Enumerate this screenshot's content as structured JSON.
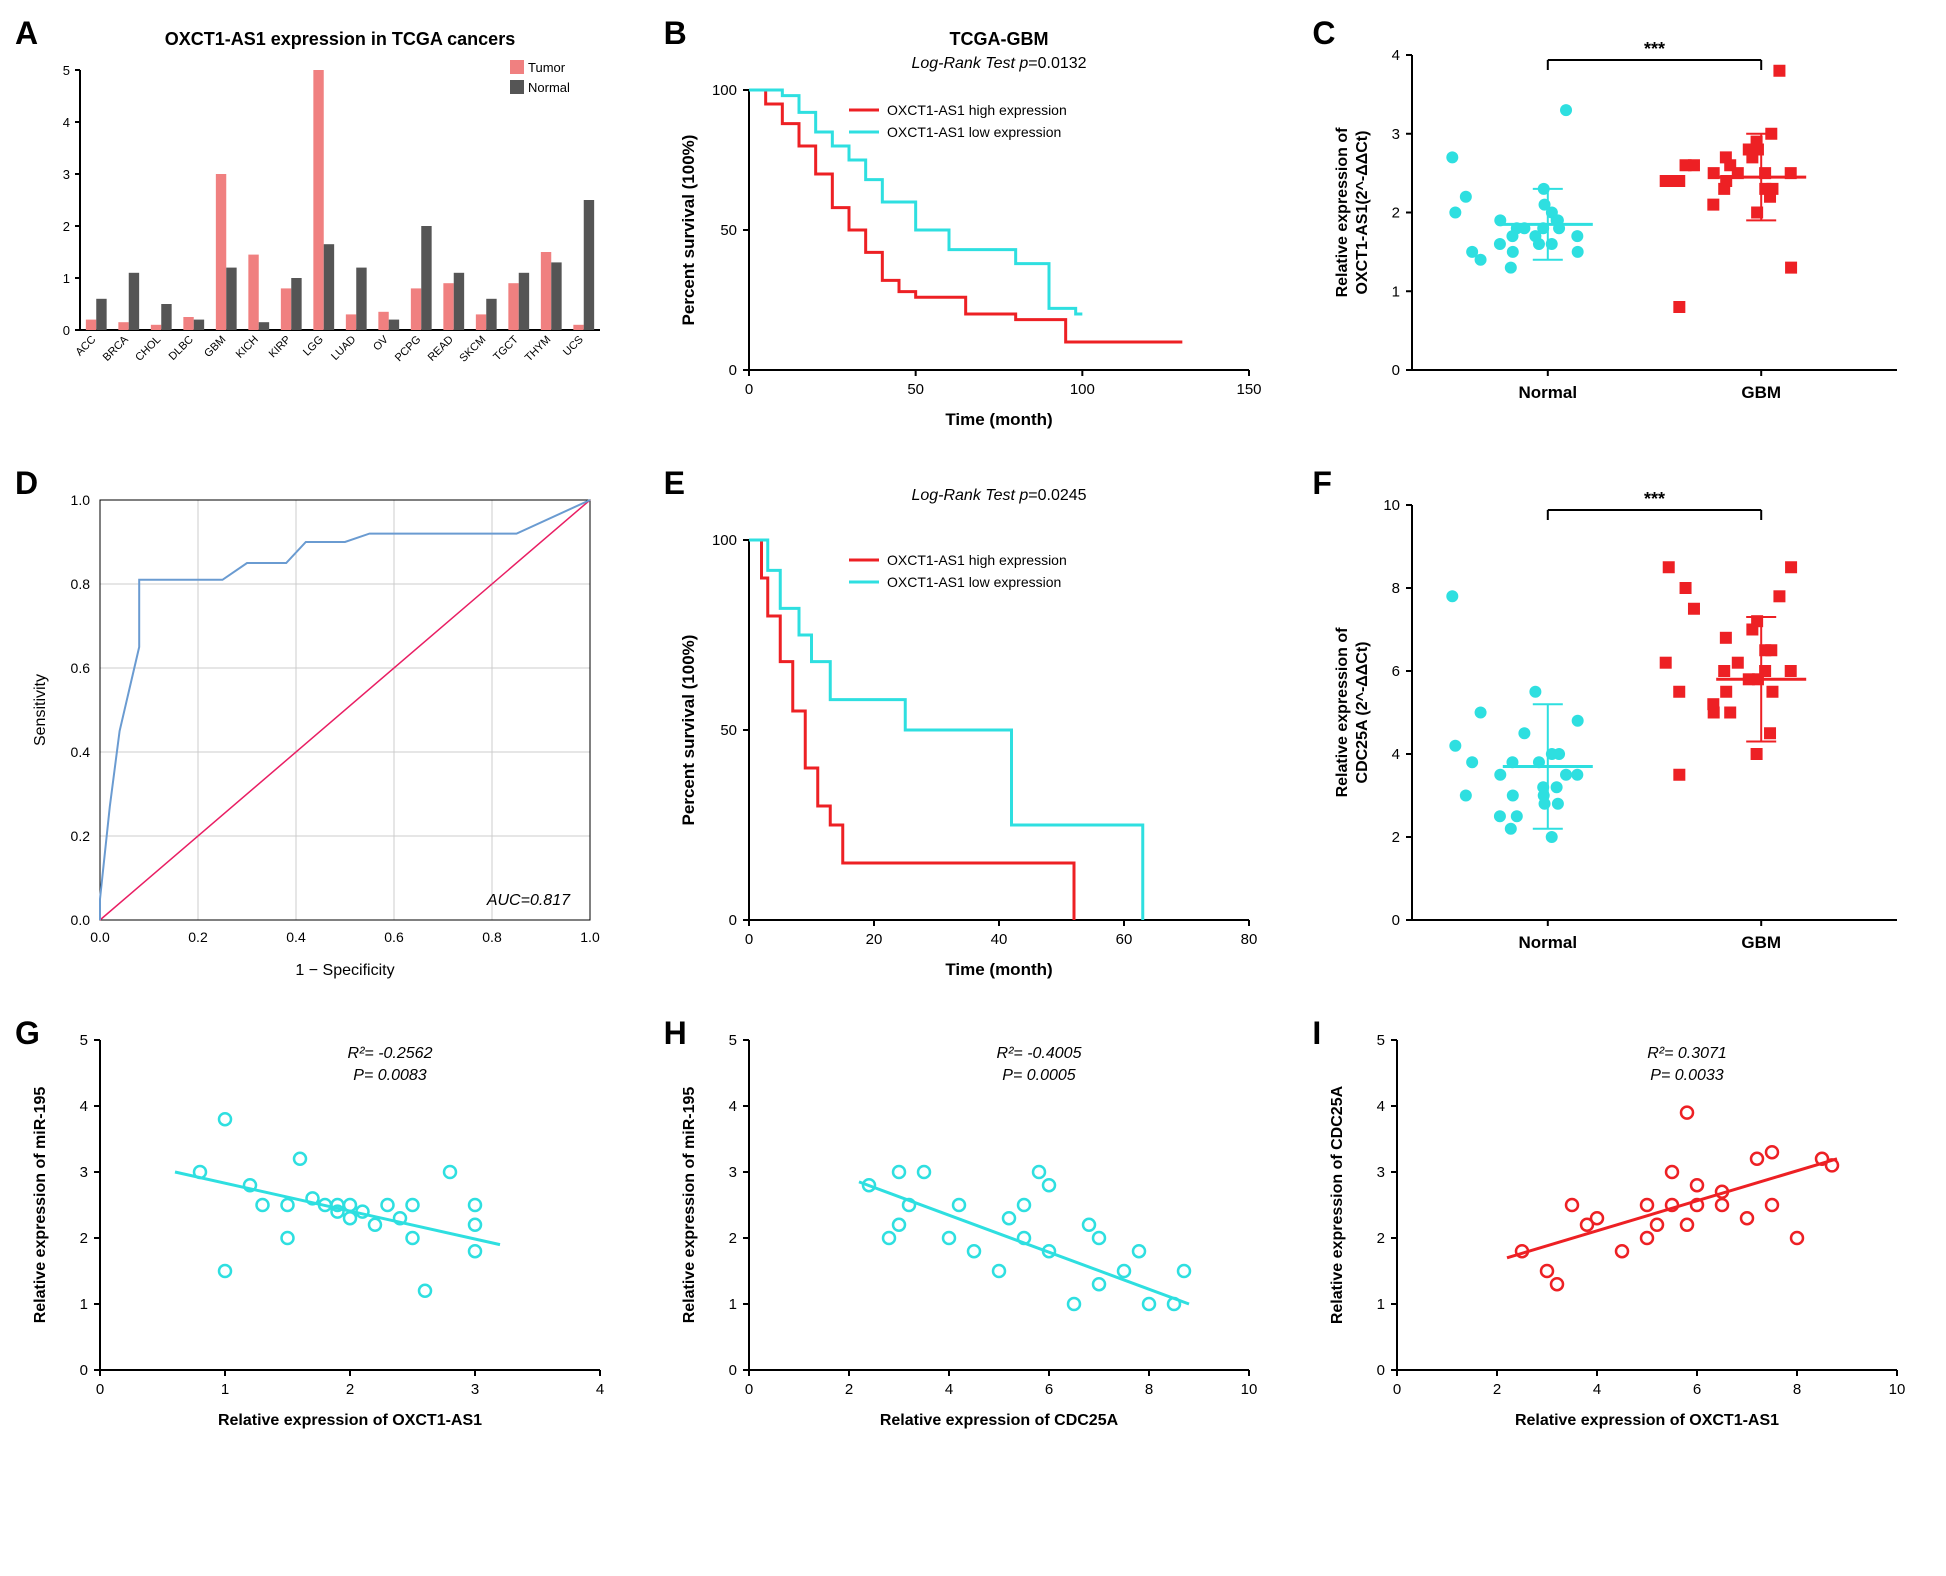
{
  "colors": {
    "tumor": "#f08080",
    "normal_bar": "#555555",
    "red": "#ed2024",
    "cyan": "#2edfe0",
    "roc_blue": "#6a9bd1",
    "roc_ref": "#e91e63",
    "black": "#000000",
    "grid": "#cccccc"
  },
  "panelA": {
    "label": "A",
    "title": "OXCT1-AS1 expression in TCGA cancers",
    "legend": [
      "Tumor",
      "Normal"
    ],
    "ylim": [
      0,
      5
    ],
    "yticks": [
      0,
      1,
      2,
      3,
      4,
      5
    ],
    "categories": [
      "ACC",
      "BRCA",
      "CHOL",
      "DLBC",
      "GBM",
      "KICH",
      "KIRP",
      "LGG",
      "LUAD",
      "OV",
      "PCPG",
      "READ",
      "SKCM",
      "TGCT",
      "THYM",
      "UCS"
    ],
    "tumor": [
      0.2,
      0.15,
      0.1,
      0.25,
      3.0,
      1.45,
      0.8,
      5.0,
      0.3,
      0.35,
      0.8,
      0.9,
      0.3,
      0.9,
      1.5,
      0.1
    ],
    "normal": [
      0.6,
      1.1,
      0.5,
      0.2,
      1.2,
      0.15,
      1.0,
      1.65,
      1.2,
      0.2,
      2.0,
      1.1,
      0.6,
      1.1,
      1.3,
      2.5
    ],
    "font_title": 18,
    "font_tick": 12
  },
  "panelB": {
    "label": "B",
    "title": "TCGA-GBM",
    "subtitle_prefix": "Log-Rank Test p",
    "subtitle_value": "=0.0132",
    "xlabel": "Time (month)",
    "ylabel": "Percent survival (100%)",
    "xlim": [
      0,
      150
    ],
    "xticks": [
      0,
      50,
      100,
      150
    ],
    "ylim": [
      0,
      100
    ],
    "yticks": [
      0,
      50,
      100
    ],
    "legend": [
      "OXCT1-AS1 high expression",
      "OXCT1-AS1 low expression"
    ],
    "high": [
      [
        0,
        100
      ],
      [
        5,
        95
      ],
      [
        10,
        88
      ],
      [
        15,
        80
      ],
      [
        20,
        70
      ],
      [
        25,
        58
      ],
      [
        30,
        50
      ],
      [
        35,
        42
      ],
      [
        40,
        32
      ],
      [
        45,
        28
      ],
      [
        50,
        26
      ],
      [
        55,
        26
      ],
      [
        65,
        20
      ],
      [
        80,
        18
      ],
      [
        95,
        10
      ],
      [
        130,
        10
      ]
    ],
    "low": [
      [
        0,
        100
      ],
      [
        5,
        100
      ],
      [
        10,
        98
      ],
      [
        15,
        92
      ],
      [
        20,
        85
      ],
      [
        25,
        80
      ],
      [
        30,
        75
      ],
      [
        35,
        68
      ],
      [
        40,
        60
      ],
      [
        50,
        50
      ],
      [
        60,
        43
      ],
      [
        70,
        43
      ],
      [
        80,
        38
      ],
      [
        90,
        22
      ],
      [
        98,
        20
      ],
      [
        100,
        20
      ]
    ]
  },
  "panelC": {
    "label": "C",
    "ylabel_line1": "Relative expression of",
    "ylabel_line2": "OXCT1-AS1(2^-ΔΔCt)",
    "ylim": [
      0,
      4
    ],
    "yticks": [
      0,
      1,
      2,
      3,
      4
    ],
    "categories": [
      "Normal",
      "GBM"
    ],
    "sig": "***",
    "normal_points": [
      1.5,
      1.7,
      1.8,
      2.0,
      1.6,
      2.1,
      1.9,
      1.8,
      2.2,
      1.4,
      1.3,
      1.9,
      2.0,
      1.7,
      1.6,
      2.3,
      1.5,
      1.8,
      1.9,
      1.7,
      3.3,
      1.6,
      1.8,
      1.5,
      2.7
    ],
    "gbm_points": [
      2.4,
      2.5,
      2.6,
      2.3,
      2.7,
      2.8,
      2.2,
      2.5,
      2.4,
      2.6,
      2.3,
      2.5,
      2.4,
      2.7,
      2.1,
      2.0,
      1.3,
      2.9,
      3.0,
      2.8,
      3.8,
      2.5,
      2.3,
      2.6,
      2.4,
      0.8
    ],
    "normal_mean": 1.85,
    "normal_sd": 0.45,
    "gbm_mean": 2.45,
    "gbm_sd": 0.55
  },
  "panelD": {
    "label": "D",
    "xlabel": "1 − Specificity",
    "ylabel": "Sensitivity",
    "xlim": [
      0,
      1
    ],
    "xticks": [
      0.0,
      0.2,
      0.4,
      0.6,
      0.8,
      1.0
    ],
    "ylim": [
      0,
      1
    ],
    "yticks": [
      0.0,
      0.2,
      0.4,
      0.6,
      0.8,
      1.0
    ],
    "auc_label": "AUC=0.817",
    "roc": [
      [
        0,
        0
      ],
      [
        0,
        0.05
      ],
      [
        0.02,
        0.27
      ],
      [
        0.04,
        0.45
      ],
      [
        0.06,
        0.55
      ],
      [
        0.08,
        0.65
      ],
      [
        0.08,
        0.81
      ],
      [
        0.12,
        0.81
      ],
      [
        0.25,
        0.81
      ],
      [
        0.3,
        0.85
      ],
      [
        0.38,
        0.85
      ],
      [
        0.42,
        0.9
      ],
      [
        0.5,
        0.9
      ],
      [
        0.55,
        0.92
      ],
      [
        0.7,
        0.92
      ],
      [
        0.85,
        0.92
      ],
      [
        1.0,
        1.0
      ]
    ]
  },
  "panelE": {
    "label": "E",
    "subtitle_prefix": "Log-Rank Test p",
    "subtitle_value": "=0.0245",
    "xlabel": "Time (month)",
    "ylabel": "Percent survival (100%)",
    "xlim": [
      0,
      80
    ],
    "xticks": [
      0,
      20,
      40,
      60,
      80
    ],
    "ylim": [
      0,
      100
    ],
    "yticks": [
      0,
      50,
      100
    ],
    "legend": [
      "OXCT1-AS1 high expression",
      "OXCT1-AS1 low expression"
    ],
    "high": [
      [
        0,
        100
      ],
      [
        2,
        90
      ],
      [
        3,
        80
      ],
      [
        5,
        68
      ],
      [
        7,
        55
      ],
      [
        9,
        40
      ],
      [
        11,
        30
      ],
      [
        13,
        25
      ],
      [
        15,
        15
      ],
      [
        25,
        15
      ],
      [
        40,
        15
      ],
      [
        50,
        15
      ],
      [
        52,
        0
      ]
    ],
    "low": [
      [
        0,
        100
      ],
      [
        3,
        92
      ],
      [
        5,
        82
      ],
      [
        8,
        75
      ],
      [
        10,
        68
      ],
      [
        13,
        58
      ],
      [
        20,
        58
      ],
      [
        25,
        50
      ],
      [
        40,
        50
      ],
      [
        42,
        25
      ],
      [
        62,
        25
      ],
      [
        63,
        0
      ]
    ]
  },
  "panelF": {
    "label": "F",
    "ylabel_line1": "Relative expression of",
    "ylabel_line2": "CDC25A (2^-ΔΔCt)",
    "ylim": [
      0,
      10
    ],
    "yticks": [
      0,
      2,
      4,
      6,
      8,
      10
    ],
    "categories": [
      "Normal",
      "GBM"
    ],
    "sig": "***",
    "normal_points": [
      3.0,
      3.5,
      2.5,
      4.0,
      3.8,
      2.8,
      3.2,
      4.5,
      3.0,
      5.0,
      2.2,
      3.5,
      4.2,
      3.8,
      2.5,
      3.0,
      4.8,
      3.2,
      2.8,
      5.5,
      3.5,
      2.0,
      4.0,
      3.8,
      7.8
    ],
    "gbm_points": [
      5.5,
      6.0,
      5.0,
      6.5,
      7.0,
      5.8,
      4.5,
      6.2,
      5.5,
      7.5,
      6.0,
      5.0,
      8.5,
      6.8,
      5.2,
      7.2,
      8.5,
      4.0,
      6.5,
      5.8,
      7.8,
      6.0,
      5.5,
      8.0,
      6.2,
      3.5
    ],
    "normal_mean": 3.7,
    "normal_sd": 1.5,
    "gbm_mean": 5.8,
    "gbm_sd": 1.5
  },
  "panelG": {
    "label": "G",
    "xlabel": "Relative expression of OXCT1-AS1",
    "ylabel": "Relative expression of miR-195",
    "r2": "R²= -0.2562",
    "p": "P= 0.0083",
    "xlim": [
      0,
      4
    ],
    "xticks": [
      0,
      1,
      2,
      3,
      4
    ],
    "ylim": [
      0,
      5
    ],
    "yticks": [
      0,
      1,
      2,
      3,
      4,
      5
    ],
    "points": [
      [
        0.8,
        3.0
      ],
      [
        1.0,
        1.5
      ],
      [
        1.0,
        3.8
      ],
      [
        1.2,
        2.8
      ],
      [
        1.3,
        2.5
      ],
      [
        1.5,
        2.0
      ],
      [
        1.5,
        2.5
      ],
      [
        1.6,
        3.2
      ],
      [
        1.7,
        2.6
      ],
      [
        1.8,
        2.5
      ],
      [
        1.9,
        2.4
      ],
      [
        1.9,
        2.5
      ],
      [
        2.0,
        2.5
      ],
      [
        2.0,
        2.3
      ],
      [
        2.1,
        2.4
      ],
      [
        2.2,
        2.2
      ],
      [
        2.3,
        2.5
      ],
      [
        2.4,
        2.3
      ],
      [
        2.5,
        2.5
      ],
      [
        2.5,
        2.0
      ],
      [
        2.6,
        1.2
      ],
      [
        2.8,
        3.0
      ],
      [
        3.0,
        2.5
      ],
      [
        3.0,
        1.8
      ],
      [
        3.0,
        2.2
      ]
    ],
    "fit": [
      [
        0.6,
        3.0
      ],
      [
        3.2,
        1.9
      ]
    ],
    "color": "#2edfe0"
  },
  "panelH": {
    "label": "H",
    "xlabel": "Relative expression of  CDC25A",
    "ylabel": "Relative expression of miR-195",
    "r2": "R²= -0.4005",
    "p": "P= 0.0005",
    "xlim": [
      0,
      10
    ],
    "xticks": [
      0,
      2,
      4,
      6,
      8,
      10
    ],
    "ylim": [
      0,
      5
    ],
    "yticks": [
      0,
      1,
      2,
      3,
      4,
      5
    ],
    "points": [
      [
        2.4,
        2.8
      ],
      [
        2.8,
        2.0
      ],
      [
        3.0,
        2.2
      ],
      [
        3.0,
        3.0
      ],
      [
        3.2,
        2.5
      ],
      [
        3.5,
        3.0
      ],
      [
        4.0,
        2.0
      ],
      [
        4.2,
        2.5
      ],
      [
        4.5,
        1.8
      ],
      [
        5.0,
        1.5
      ],
      [
        5.2,
        2.3
      ],
      [
        5.5,
        2.0
      ],
      [
        5.5,
        2.5
      ],
      [
        5.8,
        3.0
      ],
      [
        6.0,
        1.8
      ],
      [
        6.0,
        2.8
      ],
      [
        6.5,
        1.0
      ],
      [
        6.8,
        2.2
      ],
      [
        7.0,
        1.3
      ],
      [
        7.0,
        2.0
      ],
      [
        7.5,
        1.5
      ],
      [
        7.8,
        1.8
      ],
      [
        8.0,
        1.0
      ],
      [
        8.5,
        1.0
      ],
      [
        8.7,
        1.5
      ]
    ],
    "fit": [
      [
        2.2,
        2.85
      ],
      [
        8.8,
        1.0
      ]
    ],
    "color": "#2edfe0"
  },
  "panelI": {
    "label": "I",
    "xlabel": "Relative expression of OXCT1-AS1",
    "ylabel": "Relative expression of CDC25A",
    "r2": "R²= 0.3071",
    "p": "P= 0.0033",
    "xlim": [
      0,
      10
    ],
    "xticks": [
      0,
      2,
      4,
      6,
      8,
      10
    ],
    "ylim": [
      0,
      5
    ],
    "yticks": [
      0,
      1,
      2,
      3,
      4,
      5
    ],
    "points": [
      [
        2.5,
        1.8
      ],
      [
        3.0,
        1.5
      ],
      [
        3.2,
        1.3
      ],
      [
        3.5,
        2.5
      ],
      [
        3.8,
        2.2
      ],
      [
        4.0,
        2.3
      ],
      [
        4.5,
        1.8
      ],
      [
        5.0,
        2.5
      ],
      [
        5.0,
        2.0
      ],
      [
        5.2,
        2.2
      ],
      [
        5.5,
        3.0
      ],
      [
        5.5,
        2.5
      ],
      [
        5.8,
        3.9
      ],
      [
        5.8,
        2.2
      ],
      [
        6.0,
        2.5
      ],
      [
        6.0,
        2.8
      ],
      [
        6.5,
        2.5
      ],
      [
        6.5,
        2.7
      ],
      [
        7.0,
        2.3
      ],
      [
        7.2,
        3.2
      ],
      [
        7.5,
        2.5
      ],
      [
        7.5,
        3.3
      ],
      [
        8.0,
        2.0
      ],
      [
        8.5,
        3.2
      ],
      [
        8.7,
        3.1
      ]
    ],
    "fit": [
      [
        2.2,
        1.7
      ],
      [
        8.8,
        3.2
      ]
    ],
    "color": "#ed2024"
  }
}
